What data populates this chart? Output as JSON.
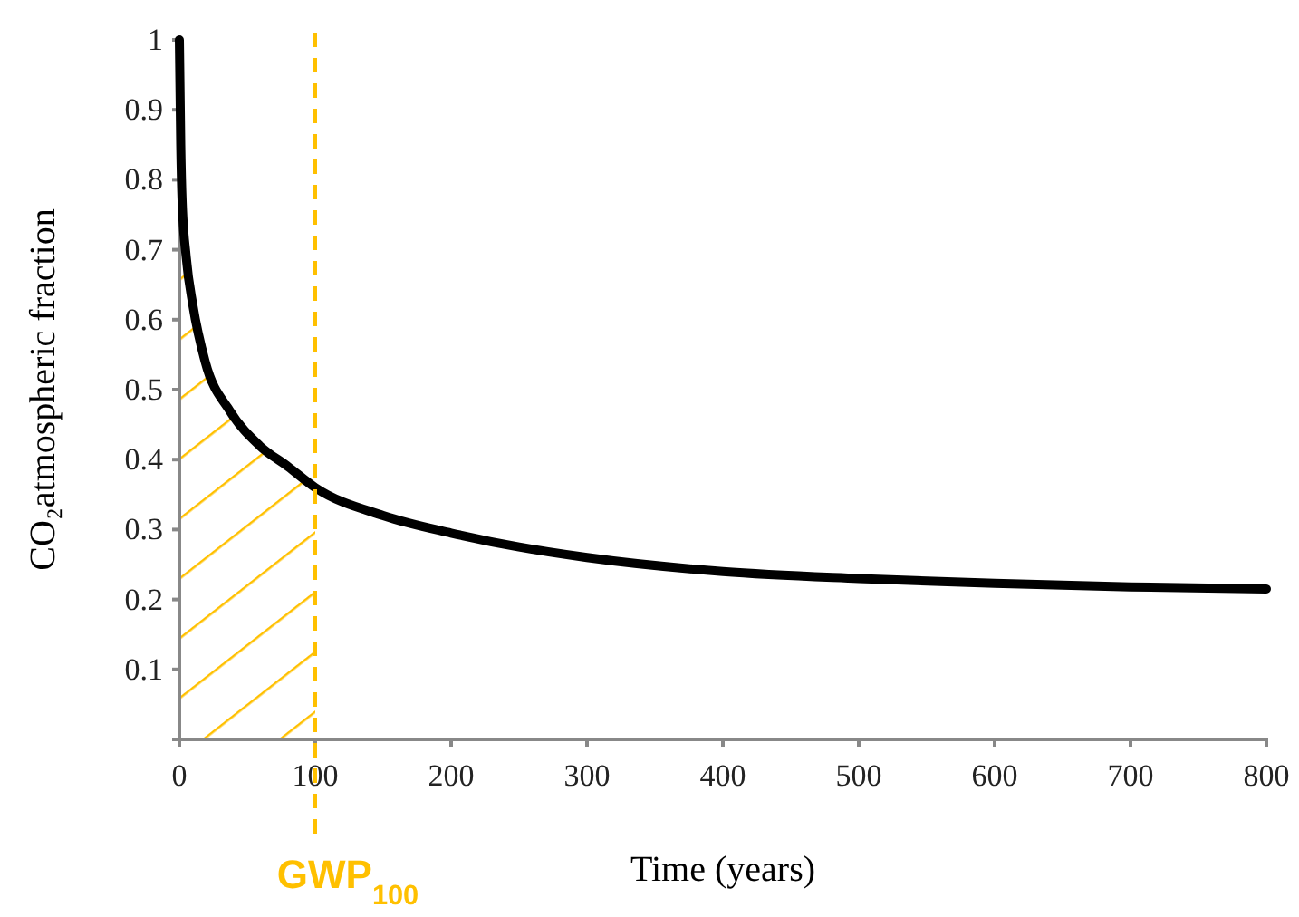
{
  "chart_data": {
    "type": "line",
    "xlabel": "Time (years)",
    "ylabel": "CO₂atmospheric fraction",
    "x": [
      0,
      1,
      2,
      5,
      10,
      19,
      37,
      59,
      80,
      100,
      150,
      200,
      250,
      300,
      400,
      500,
      600,
      700,
      800
    ],
    "series": [
      {
        "color": "#000000",
        "values": [
          1,
          0.85,
          0.77,
          0.69,
          0.62,
          0.54,
          0.47,
          0.42,
          0.39,
          0.36,
          0.32,
          0.295,
          0.275,
          0.26,
          0.24,
          0.23,
          0.223,
          0.218,
          0.215
        ]
      }
    ],
    "xlim": [
      0,
      800
    ],
    "xticks": [
      0,
      100,
      200,
      300,
      400,
      500,
      600,
      700,
      800
    ],
    "ylim": [
      0,
      1
    ],
    "yticks": [
      0.1,
      0.2,
      0.3,
      0.4,
      0.5,
      0.6,
      0.7,
      0.8,
      0.9,
      1
    ],
    "ref_lines": [
      {
        "axis": "x",
        "value": 100,
        "label": "GWP$_{100}$",
        "color": "#ffc000",
        "line_style": "dashed"
      }
    ],
    "bands": [
      {
        "axis": "x",
        "from": 0,
        "to": 100,
        "color": "#ffc000"
      }
    ],
    "grid": false,
    "marker": "none",
    "line_style": "solid"
  }
}
